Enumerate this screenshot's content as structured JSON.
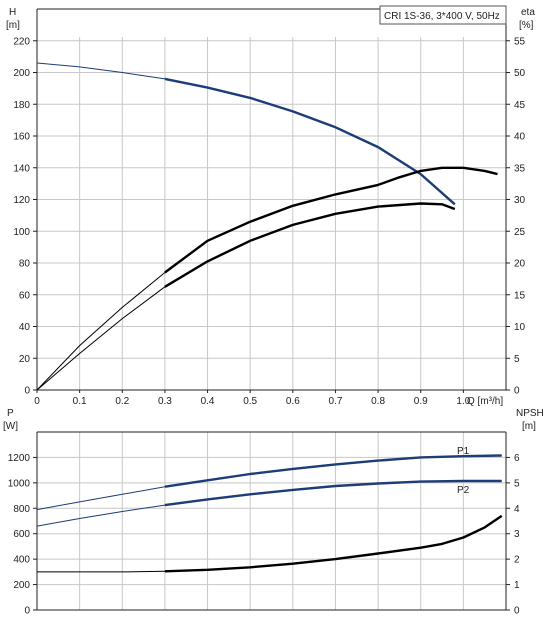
{
  "chart_data": [
    {
      "type": "line",
      "title": "CRI 1S-36, 3*400 V, 50Hz",
      "xlabel": "Q [m³/h]",
      "xticks": [
        "0",
        "0.1",
        "0.2",
        "0.3",
        "0.4",
        "0.5",
        "0.6",
        "0.7",
        "0.8",
        "0.9",
        "1.0"
      ],
      "xlim": [
        0,
        1.1
      ],
      "left_axis": {
        "label_top": "H",
        "unit": "[m]",
        "ticks": [
          "0",
          "20",
          "40",
          "60",
          "80",
          "100",
          "120",
          "140",
          "160",
          "180",
          "200",
          "220"
        ],
        "ylim": [
          0,
          240
        ]
      },
      "right_axis": {
        "label_top": "eta",
        "unit": "[%]",
        "ticks": [
          "0",
          "5",
          "10",
          "15",
          "20",
          "25",
          "30",
          "35",
          "40",
          "45",
          "50",
          "55"
        ],
        "ylim": [
          0,
          60
        ]
      },
      "grid": true,
      "series": [
        {
          "axis": "left",
          "color": "#1c3d78",
          "x": [
            0,
            0.1,
            0.2,
            0.3,
            0.4,
            0.5,
            0.6,
            0.7,
            0.8,
            0.9,
            0.98
          ],
          "y": [
            206,
            203.5,
            200,
            196,
            190.5,
            184,
            175.5,
            165.5,
            153,
            136,
            117
          ]
        },
        {
          "axis": "right",
          "color": "#000000",
          "x": [
            0,
            0.1,
            0.2,
            0.3,
            0.4,
            0.5,
            0.6,
            0.7,
            0.8,
            0.85,
            0.9,
            0.95,
            1.0,
            1.05,
            1.08
          ],
          "y": [
            0,
            7.0,
            13.0,
            18.5,
            23.5,
            26.5,
            29.0,
            30.8,
            32.3,
            33.5,
            34.5,
            35.0,
            35.0,
            34.5,
            34.0
          ]
        },
        {
          "axis": "left",
          "color": "#000000",
          "x": [
            0,
            0.1,
            0.2,
            0.3,
            0.4,
            0.5,
            0.6,
            0.7,
            0.8,
            0.9,
            0.95,
            0.98
          ],
          "y": [
            0,
            23,
            45,
            65,
            81,
            94,
            104,
            111,
            115.5,
            117.5,
            117,
            114
          ]
        }
      ]
    },
    {
      "type": "line",
      "xlim": [
        0,
        1.1
      ],
      "left_axis": {
        "label_top": "P",
        "unit": "[W]",
        "ticks": [
          "0",
          "200",
          "400",
          "600",
          "800",
          "1000",
          "1200"
        ],
        "ylim": [
          0,
          1400
        ]
      },
      "right_axis": {
        "label_top": "NPSH",
        "unit": "[m]",
        "ticks": [
          "0",
          "1",
          "2",
          "3",
          "4",
          "5",
          "6"
        ],
        "ylim": [
          0,
          7
        ]
      },
      "grid": true,
      "series": [
        {
          "name": "P1",
          "axis": "left",
          "color": "#1c3d78",
          "x": [
            0,
            0.1,
            0.2,
            0.3,
            0.4,
            0.5,
            0.6,
            0.7,
            0.8,
            0.9,
            1.0,
            1.09
          ],
          "y": [
            790,
            850,
            910,
            970,
            1020,
            1070,
            1110,
            1145,
            1175,
            1200,
            1210,
            1215
          ]
        },
        {
          "name": "P2",
          "axis": "left",
          "color": "#1c3d78",
          "x": [
            0,
            0.1,
            0.2,
            0.3,
            0.4,
            0.5,
            0.6,
            0.7,
            0.8,
            0.9,
            1.0,
            1.09
          ],
          "y": [
            660,
            720,
            775,
            825,
            870,
            910,
            945,
            975,
            995,
            1010,
            1015,
            1015
          ]
        },
        {
          "axis": "right",
          "color": "#000000",
          "x": [
            0,
            0.1,
            0.2,
            0.3,
            0.4,
            0.5,
            0.6,
            0.7,
            0.8,
            0.9,
            0.95,
            1.0,
            1.05,
            1.09
          ],
          "y": [
            1.5,
            1.5,
            1.5,
            1.52,
            1.58,
            1.68,
            1.82,
            2.0,
            2.22,
            2.45,
            2.6,
            2.85,
            3.25,
            3.7
          ]
        }
      ]
    }
  ]
}
